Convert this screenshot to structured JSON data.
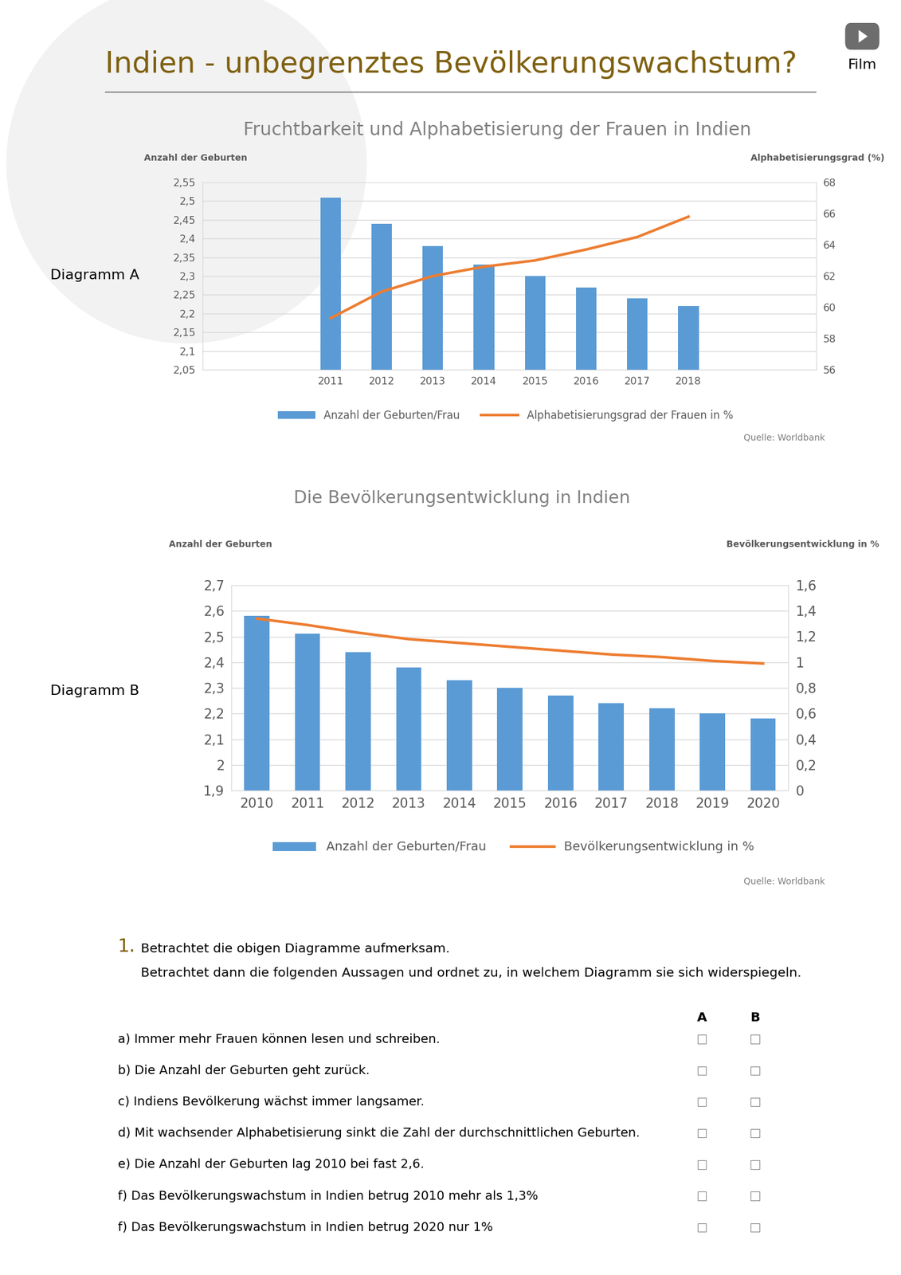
{
  "title": "Indien - unbegrenztes Bevölkerungswachstum?",
  "film_label": "Film",
  "chart_data": [
    {
      "type": "bar",
      "diagram_label": "Diagramm A",
      "title": "Fruchtbarkeit und Alphabetisierung der Frauen in Indien",
      "ylabel": "Anzahl der Geburten",
      "y2label": "Alphabetisierungsgrad (%)",
      "source": "Quelle: Worldbank",
      "categories": [
        "2011",
        "2012",
        "2013",
        "2014",
        "2015",
        "2016",
        "2017",
        "2018"
      ],
      "series": [
        {
          "name": "Anzahl der Geburten/Frau",
          "type": "bar",
          "color": "#5b9bd5",
          "values": [
            2.51,
            2.44,
            2.38,
            2.33,
            2.3,
            2.27,
            2.24,
            2.22
          ]
        },
        {
          "name": "Alphabetisierungsgrad der Frauen in %",
          "type": "line",
          "color": "#ed7d31",
          "axis": "y2",
          "values": [
            59.3,
            61.0,
            62.0,
            62.6,
            63.0,
            63.7,
            64.5,
            65.8
          ]
        }
      ],
      "ylim": [
        2.05,
        2.55
      ],
      "yticks": [
        {
          "value": 2.05,
          "label": "2,05"
        },
        {
          "value": 2.1,
          "label": "2,1"
        },
        {
          "value": 2.15,
          "label": "2,15"
        },
        {
          "value": 2.2,
          "label": "2,2"
        },
        {
          "value": 2.25,
          "label": "2,25"
        },
        {
          "value": 2.3,
          "label": "2,3"
        },
        {
          "value": 2.35,
          "label": "2,35"
        },
        {
          "value": 2.4,
          "label": "2,4"
        },
        {
          "value": 2.45,
          "label": "2,45"
        },
        {
          "value": 2.5,
          "label": "2,5"
        },
        {
          "value": 2.55,
          "label": "2,55"
        }
      ],
      "y2lim": [
        56,
        68
      ],
      "y2ticks": [
        56,
        58,
        60,
        62,
        64,
        66,
        68
      ],
      "grid": true,
      "legend": "lower center"
    },
    {
      "type": "bar",
      "diagram_label": "Diagramm B",
      "title": "Die Bevölkerungsentwicklung in Indien",
      "ylabel": "Anzahl der Geburten",
      "y2label": "Bevölkerungsentwicklung in %",
      "source": "Quelle: Worldbank",
      "categories": [
        "2010",
        "2011",
        "2012",
        "2013",
        "2014",
        "2015",
        "2016",
        "2017",
        "2018",
        "2019",
        "2020"
      ],
      "series": [
        {
          "name": "Anzahl der Geburten/Frau",
          "type": "bar",
          "color": "#5b9bd5",
          "values": [
            2.58,
            2.51,
            2.44,
            2.38,
            2.33,
            2.3,
            2.27,
            2.24,
            2.22,
            2.2,
            2.18
          ]
        },
        {
          "name": "Bevölkerungsentwicklung in %",
          "type": "line",
          "color": "#ed7d31",
          "axis": "y2",
          "values": [
            1.34,
            1.29,
            1.23,
            1.18,
            1.15,
            1.12,
            1.09,
            1.06,
            1.04,
            1.01,
            0.99
          ]
        }
      ],
      "ylim": [
        1.9,
        2.7
      ],
      "yticks": [
        {
          "value": 1.9,
          "label": "1,9"
        },
        2,
        {
          "value": 2.1,
          "label": "2,1"
        },
        {
          "value": 2.2,
          "label": "2,2"
        },
        {
          "value": 2.3,
          "label": "2,3"
        },
        {
          "value": 2.4,
          "label": "2,4"
        },
        {
          "value": 2.5,
          "label": "2,5"
        },
        {
          "value": 2.6,
          "label": "2,6"
        },
        {
          "value": 2.7,
          "label": "2,7"
        }
      ],
      "y2lim": [
        0,
        1.6
      ],
      "y2ticks": [
        0,
        {
          "value": 0.2,
          "label": "0,2"
        },
        {
          "value": 0.4,
          "label": "0,4"
        },
        {
          "value": 0.6,
          "label": "0,6"
        },
        {
          "value": 0.8,
          "label": "0,8"
        },
        1,
        {
          "value": 1.2,
          "label": "1,2"
        },
        {
          "value": 1.4,
          "label": "1,4"
        },
        {
          "value": 1.6,
          "label": "1,6"
        }
      ],
      "grid": true,
      "legend": "lower center"
    }
  ],
  "exercise": {
    "number": "1.",
    "lines": [
      "Betrachtet die obigen Diagramme aufmerksam.",
      "Betrachtet dann die folgenden Aussagen und ordnet zu, in welchem Diagramm sie sich widerspiegeln."
    ],
    "columns": [
      "A",
      "B"
    ],
    "statements": [
      "a) Immer mehr Frauen können lesen und schreiben.",
      "b) Die Anzahl der Geburten geht zurück.",
      "c) Indiens Bevölkerung wächst immer langsamer.",
      "d) Mit wachsender Alphabetisierung sinkt die Zahl der durchschnittlichen Geburten.",
      "e) Die Anzahl der Geburten lag 2010 bei fast 2,6.",
      "f) Das Bevölkerungswachstum in Indien betrug 2010 mehr als 1,3%",
      "f) Das Bevölkerungswachstum in Indien betrug 2020 nur 1%"
    ]
  }
}
